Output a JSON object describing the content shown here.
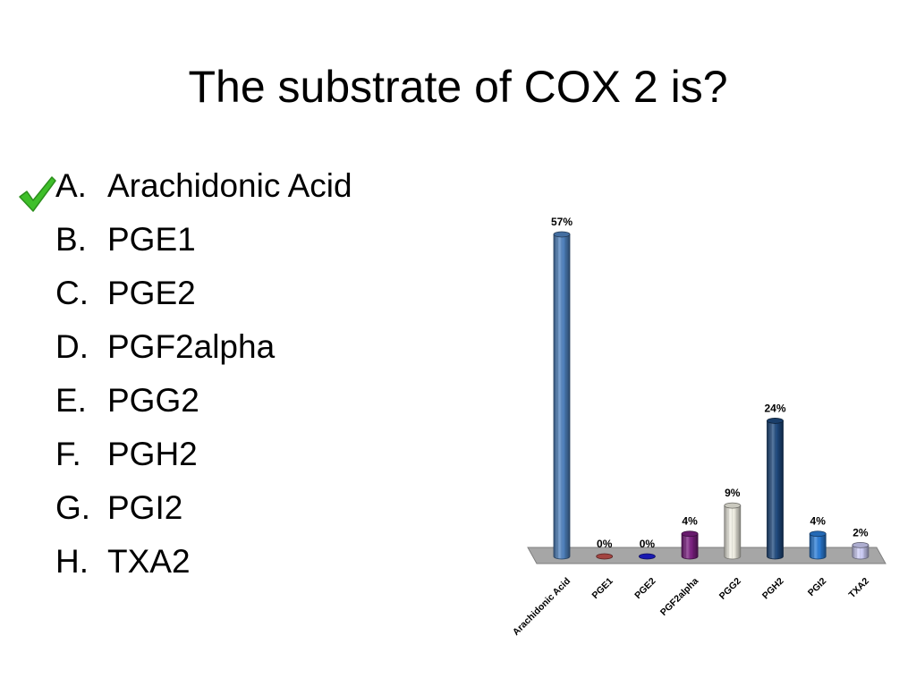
{
  "slide": {
    "title": "The substrate of COX 2 is?",
    "options": [
      {
        "letter": "A.",
        "text": "Arachidonic Acid",
        "correct": true
      },
      {
        "letter": "B.",
        "text": "PGE1"
      },
      {
        "letter": "C.",
        "text": "PGE2"
      },
      {
        "letter": "D.",
        "text": "PGF2alpha"
      },
      {
        "letter": "E.",
        "text": "PGG2"
      },
      {
        "letter": "F.",
        "text": "PGH2"
      },
      {
        "letter": "G.",
        "text": "PGI2"
      },
      {
        "letter": "H.",
        "text": "TXA2"
      }
    ],
    "check_icon": "checkmark-icon",
    "check_color": "#3fbf2a"
  },
  "chart_data": {
    "type": "bar",
    "style": "3d-cylinder",
    "categories": [
      "Arachidonic Acid",
      "PGE1",
      "PGE2",
      "PGF2alpha",
      "PGG2",
      "PGH2",
      "PGI2",
      "TXA2"
    ],
    "values": [
      57,
      0,
      0,
      4,
      9,
      24,
      4,
      2
    ],
    "value_labels": [
      "57%",
      "0%",
      "0%",
      "4%",
      "9%",
      "24%",
      "4%",
      "2%"
    ],
    "unit": "%",
    "colors": [
      "#4f81bd",
      "#c0504d",
      "#1f1fd0",
      "#7a1f80",
      "#eeece1",
      "#1f497d",
      "#2a7bd5",
      "#ccccf5"
    ],
    "floor_color": "#a6a6a6",
    "ylim": [
      0,
      57
    ],
    "grid": false,
    "legend": "none",
    "title": "",
    "xlabel": "",
    "ylabel": ""
  }
}
